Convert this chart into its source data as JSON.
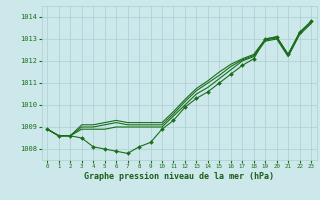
{
  "x": [
    0,
    1,
    2,
    3,
    4,
    5,
    6,
    7,
    8,
    9,
    10,
    11,
    12,
    13,
    14,
    15,
    16,
    17,
    18,
    19,
    20,
    21,
    22,
    23
  ],
  "line_main": [
    1008.9,
    1008.6,
    1008.6,
    1008.5,
    1008.1,
    1008.0,
    1007.9,
    1007.8,
    1008.1,
    1008.3,
    1008.9,
    1009.3,
    1009.9,
    1010.3,
    1010.6,
    1011.0,
    1011.4,
    1011.8,
    1012.1,
    1013.0,
    1013.1,
    1012.3,
    1013.3,
    1013.8
  ],
  "line2": [
    1008.9,
    1008.6,
    1008.6,
    1008.9,
    1008.9,
    1008.9,
    1009.0,
    1009.0,
    1009.0,
    1009.0,
    1009.0,
    1009.5,
    1010.0,
    1010.5,
    1010.8,
    1011.2,
    1011.6,
    1012.0,
    1012.2,
    1012.9,
    1013.0,
    1012.2,
    1013.2,
    1013.7
  ],
  "line3": [
    1008.9,
    1008.6,
    1008.6,
    1009.0,
    1009.0,
    1009.1,
    1009.2,
    1009.1,
    1009.1,
    1009.1,
    1009.1,
    1009.6,
    1010.15,
    1010.65,
    1011.0,
    1011.35,
    1011.75,
    1012.05,
    1012.25,
    1012.95,
    1013.05,
    1012.25,
    1013.25,
    1013.75
  ],
  "line4": [
    1008.9,
    1008.6,
    1008.6,
    1009.1,
    1009.1,
    1009.2,
    1009.3,
    1009.2,
    1009.2,
    1009.2,
    1009.2,
    1009.7,
    1010.25,
    1010.75,
    1011.1,
    1011.5,
    1011.85,
    1012.1,
    1012.3,
    1013.0,
    1013.1,
    1012.3,
    1013.3,
    1013.8
  ],
  "line_color": "#1a6e1a",
  "bg_color": "#cce8ea",
  "grid_color": "#aacfd2",
  "title": "Graphe pression niveau de la mer (hPa)",
  "title_color": "#1a5e1a",
  "ylim": [
    1007.5,
    1014.5
  ],
  "yticks": [
    1008,
    1009,
    1010,
    1011,
    1012,
    1013,
    1014
  ],
  "xticks": [
    0,
    1,
    2,
    3,
    4,
    5,
    6,
    7,
    8,
    9,
    10,
    11,
    12,
    13,
    14,
    15,
    16,
    17,
    18,
    19,
    20,
    21,
    22,
    23
  ],
  "marker": "D",
  "markersize": 2.0,
  "linewidth": 0.8
}
